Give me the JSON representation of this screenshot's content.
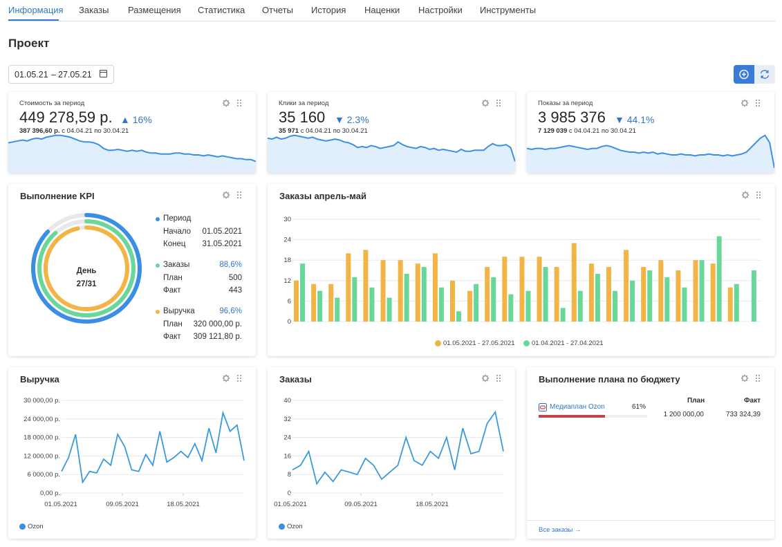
{
  "tabs": [
    "Информация",
    "Заказы",
    "Размещения",
    "Статистика",
    "Отчеты",
    "История",
    "Наценки",
    "Настройки",
    "Инструменты"
  ],
  "page_title": "Проект",
  "date_range": {
    "from": "01.05.21",
    "separator": "–",
    "to": "27.05.21"
  },
  "toolbar": {
    "add_icon": "plus-circle-icon",
    "refresh_icon": "refresh-icon"
  },
  "stats": [
    {
      "label": "Стоимость за период",
      "value": "449 278,59 р.",
      "delta": "16%",
      "direction": "up",
      "prev_value": "387 396,60 р.",
      "prev_period": "с 04.04.21 по 30.04.21",
      "trend": [
        30,
        31,
        32,
        33,
        32,
        34,
        35,
        34,
        36,
        37,
        38,
        38,
        37,
        36,
        34,
        32,
        31,
        31,
        30,
        28,
        24,
        22,
        22,
        23,
        22,
        21,
        22,
        21,
        22,
        20,
        19,
        19,
        18,
        18,
        18,
        19,
        19,
        18,
        18,
        17,
        17,
        16,
        17,
        16,
        15,
        16,
        15,
        14,
        13,
        13,
        12,
        12,
        10
      ]
    },
    {
      "label": "Клики за период",
      "value": "35 160",
      "delta": "2.3%",
      "direction": "down",
      "prev_value": "35 971",
      "prev_period": "с 04.04.21 по 30.04.21",
      "trend": [
        35,
        34,
        36,
        34,
        35,
        37,
        38,
        37,
        36,
        35,
        36,
        34,
        33,
        32,
        33,
        34,
        33,
        31,
        30,
        28,
        25,
        26,
        25,
        27,
        26,
        24,
        25,
        26,
        27,
        31,
        28,
        26,
        25,
        24,
        26,
        25,
        23,
        24,
        22,
        23,
        22,
        21,
        20,
        23,
        21,
        21,
        22,
        22,
        22,
        26,
        29,
        27,
        27,
        28,
        25,
        10
      ]
    },
    {
      "label": "Показы за период",
      "value": "3 985 376",
      "delta": "44.1%",
      "direction": "down",
      "prev_value": "7 129 039",
      "prev_period": "с 04.04.21 по 30.04.21",
      "trend": [
        24,
        23,
        24,
        24,
        23,
        24,
        24,
        25,
        26,
        27,
        26,
        25,
        24,
        23,
        24,
        24,
        26,
        27,
        26,
        24,
        22,
        21,
        20,
        20,
        19,
        20,
        19,
        20,
        18,
        19,
        18,
        17,
        17,
        18,
        17,
        17,
        16,
        17,
        17,
        18,
        17,
        17,
        16,
        17,
        16,
        17,
        18,
        20,
        25,
        30,
        35,
        38,
        30,
        3
      ]
    }
  ],
  "kpi": {
    "title": "Выполнение KPI",
    "day_label": "День",
    "day_value": "27/31",
    "day_fraction": 0.871,
    "period": {
      "label": "Период",
      "start_label": "Начало",
      "start": "01.05.2021",
      "end_label": "Конец",
      "end": "31.05.2021"
    },
    "orders": {
      "label": "Заказы",
      "percent": "88,6%",
      "fraction": 0.886,
      "plan_label": "План",
      "plan": "500",
      "fact_label": "Факт",
      "fact": "443"
    },
    "revenue": {
      "label": "Выручка",
      "percent": "96,6%",
      "fraction": 0.966,
      "plan_label": "План",
      "plan": "320 000,00 р.",
      "fact_label": "Факт",
      "fact": "309 121,80 р."
    },
    "colors": {
      "period": "#3a8fe4",
      "orders": "#6ad79a",
      "revenue": "#f2b444",
      "track": "#e7e8ea"
    }
  },
  "orders_chart": {
    "title": "Заказы апрель-май",
    "chart_data": {
      "type": "bar",
      "yticks": [
        "0",
        "6",
        "12",
        "18",
        "24",
        "30"
      ],
      "ylim": [
        0,
        30
      ],
      "legend_placement": "bottom",
      "series": [
        {
          "name": "01.05.2021 - 27.05.2021",
          "color": "#f2b444",
          "values": [
            12,
            11,
            11,
            20,
            21,
            18,
            18,
            17,
            20,
            12,
            9,
            16,
            19,
            19,
            19,
            16,
            23,
            17,
            16,
            21,
            16,
            18,
            15,
            18,
            17,
            10,
            0
          ]
        },
        {
          "name": "01.04.2021 - 27.04.2021",
          "color": "#6ad79a",
          "values": [
            17,
            9,
            7,
            13,
            10,
            7,
            14,
            16,
            10,
            3,
            11,
            13,
            8,
            9,
            16,
            4,
            9,
            14,
            9,
            12,
            15,
            13,
            10,
            18,
            25,
            11,
            15
          ]
        }
      ]
    }
  },
  "revenue_chart": {
    "title": "Выручка",
    "chart_data": {
      "type": "line",
      "yticks": [
        "0,00 р.",
        "6 000,00 р.",
        "12 000,00 р.",
        "18 000,00 р.",
        "24 000,00 р.",
        "30 000,00 р."
      ],
      "ylim": [
        0,
        30000
      ],
      "xticks": [
        "01.05.2021",
        "09.05.2021",
        "18.05.2021"
      ],
      "legend": "Ozon",
      "color": "#3a9ad9",
      "values": [
        7000,
        11500,
        19000,
        3500,
        7000,
        6500,
        11000,
        9000,
        19000,
        15000,
        7500,
        7000,
        12500,
        9000,
        20000,
        10000,
        11500,
        13500,
        11500,
        16000,
        10500,
        21000,
        13000,
        26000,
        20000,
        22000,
        10500
      ]
    }
  },
  "orders_line_chart": {
    "title": "Заказы",
    "chart_data": {
      "type": "line",
      "yticks": [
        "0",
        "8",
        "16",
        "24",
        "32",
        "40"
      ],
      "ylim": [
        0,
        40
      ],
      "xticks": [
        "01.05.2021",
        "09.05.2021",
        "18.05.2021"
      ],
      "legend": "Ozon",
      "color": "#3a9ad9",
      "values": [
        10,
        12,
        18,
        4,
        9,
        5,
        10,
        9,
        8,
        15,
        12,
        6,
        9,
        12,
        24,
        14,
        12,
        18,
        15,
        24,
        10,
        28,
        17,
        18,
        30,
        35,
        18
      ]
    }
  },
  "budget": {
    "title": "Выполнение плана по бюджету",
    "col_plan": "План",
    "col_fact": "Факт",
    "item_name": "Медиаплан Ozon",
    "item_percent": "61%",
    "item_fraction": 0.61,
    "plan": "1 200 000,00",
    "fact": "733 324,39",
    "bar_color": "#c0454d",
    "footer_link": "Все заказы →"
  }
}
